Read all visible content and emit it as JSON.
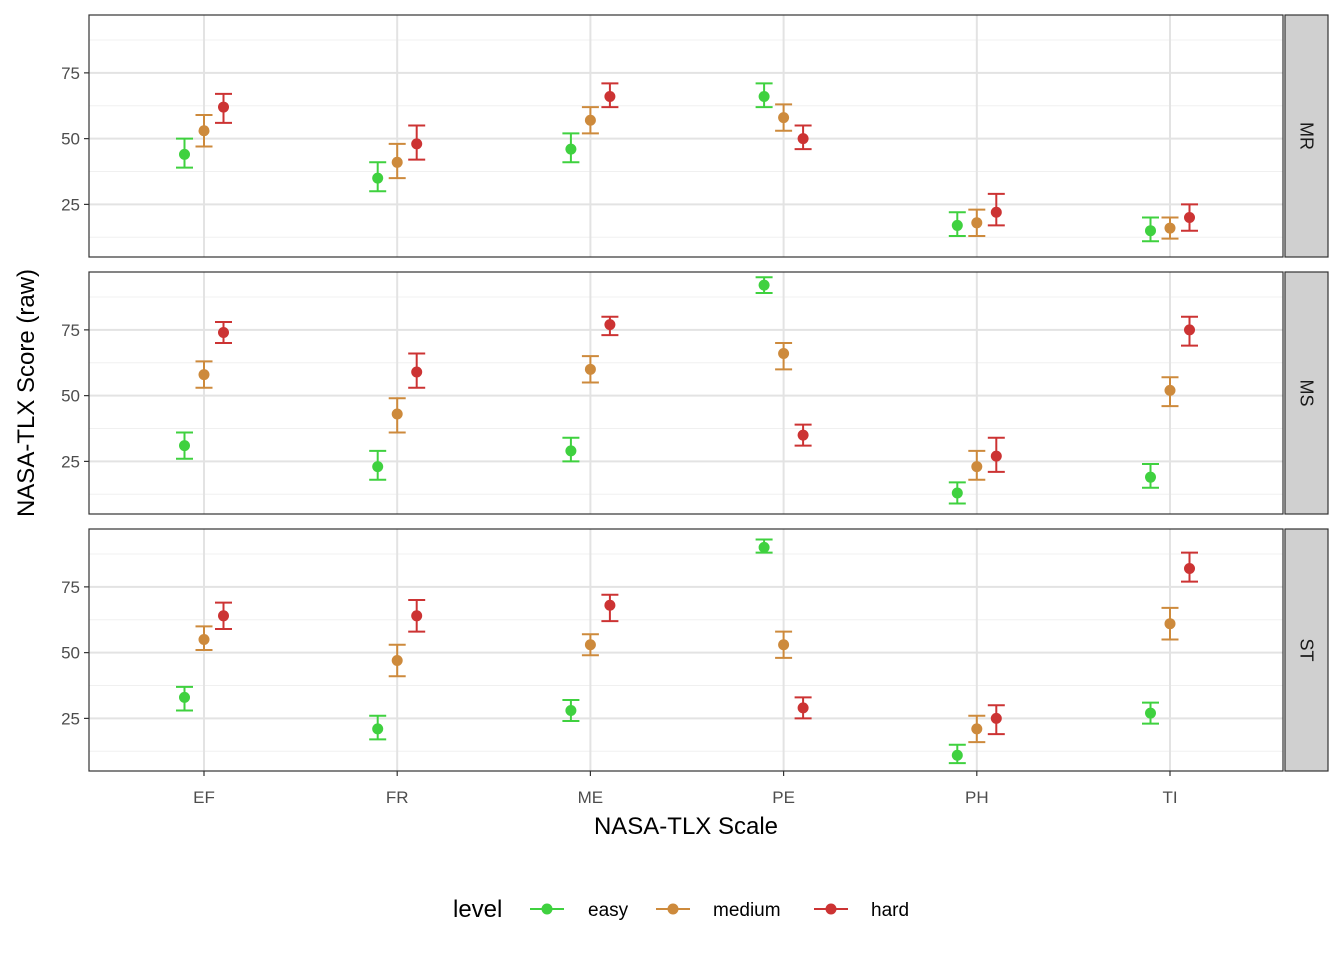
{
  "chart_data": {
    "type": "scatter",
    "subtype": "point-with-errorbars, faceted by row",
    "xlabel": "NASA-TLX Scale",
    "ylabel": "NASA-TLX Score (raw)",
    "categories": [
      "EF",
      "FR",
      "ME",
      "PE",
      "PH",
      "TI"
    ],
    "ylim": [
      5,
      97
    ],
    "yticks": [
      25,
      50,
      75
    ],
    "grid": true,
    "legend": {
      "title": "level",
      "position": "bottom",
      "entries": [
        {
          "name": "easy",
          "color": "#3fd13f"
        },
        {
          "name": "medium",
          "color": "#cd8a3c"
        },
        {
          "name": "hard",
          "color": "#cc3333"
        }
      ]
    },
    "facets": [
      {
        "label": "MR",
        "series": [
          {
            "name": "easy",
            "values": [
              44,
              35,
              46,
              66,
              17,
              15
            ],
            "lower": [
              39,
              30,
              41,
              62,
              13,
              11
            ],
            "upper": [
              50,
              41,
              52,
              71,
              22,
              20
            ]
          },
          {
            "name": "medium",
            "values": [
              53,
              41,
              57,
              58,
              18,
              16
            ],
            "lower": [
              47,
              35,
              52,
              53,
              13,
              12
            ],
            "upper": [
              59,
              48,
              62,
              63,
              23,
              20
            ]
          },
          {
            "name": "hard",
            "values": [
              62,
              48,
              66,
              50,
              22,
              20
            ],
            "lower": [
              56,
              42,
              62,
              46,
              17,
              15
            ],
            "upper": [
              67,
              55,
              71,
              55,
              29,
              25
            ]
          }
        ]
      },
      {
        "label": "MS",
        "series": [
          {
            "name": "easy",
            "values": [
              31,
              23,
              29,
              92,
              13,
              19
            ],
            "lower": [
              26,
              18,
              25,
              89,
              9,
              15
            ],
            "upper": [
              36,
              29,
              34,
              95,
              17,
              24
            ]
          },
          {
            "name": "medium",
            "values": [
              58,
              43,
              60,
              66,
              23,
              52
            ],
            "lower": [
              53,
              36,
              55,
              60,
              18,
              46
            ],
            "upper": [
              63,
              49,
              65,
              70,
              29,
              57
            ]
          },
          {
            "name": "hard",
            "values": [
              74,
              59,
              77,
              35,
              27,
              75
            ],
            "lower": [
              70,
              53,
              73,
              31,
              21,
              69
            ],
            "upper": [
              78,
              66,
              80,
              39,
              34,
              80
            ]
          }
        ]
      },
      {
        "label": "ST",
        "series": [
          {
            "name": "easy",
            "values": [
              33,
              21,
              28,
              90,
              11,
              27
            ],
            "lower": [
              28,
              17,
              24,
              88,
              8,
              23
            ],
            "upper": [
              37,
              26,
              32,
              93,
              15,
              31
            ]
          },
          {
            "name": "medium",
            "values": [
              55,
              47,
              53,
              53,
              21,
              61
            ],
            "lower": [
              51,
              41,
              49,
              48,
              16,
              55
            ],
            "upper": [
              60,
              53,
              57,
              58,
              26,
              67
            ]
          },
          {
            "name": "hard",
            "values": [
              64,
              64,
              68,
              29,
              25,
              82
            ],
            "lower": [
              59,
              58,
              62,
              25,
              19,
              77
            ],
            "upper": [
              69,
              70,
              72,
              33,
              30,
              88
            ]
          }
        ]
      }
    ]
  }
}
